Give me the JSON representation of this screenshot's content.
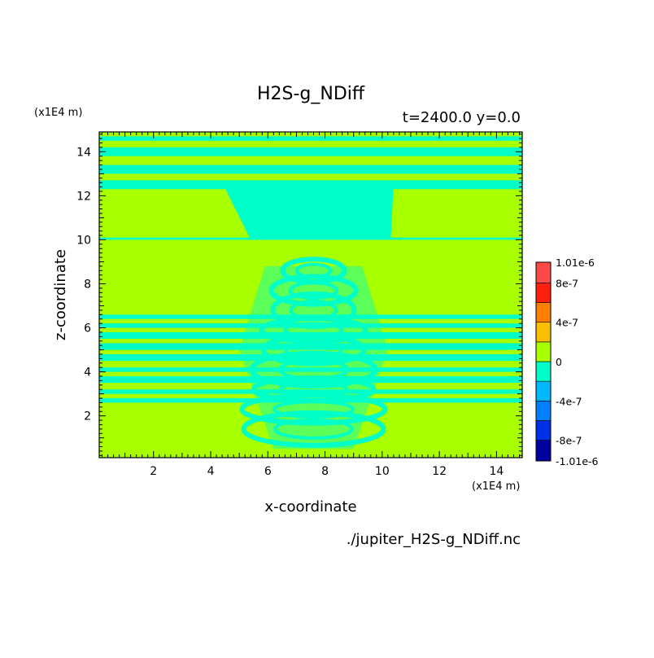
{
  "chart_data": {
    "type": "heatmap",
    "title": "H2S-g_NDiff",
    "subtitle": "t=2400.0 y=0.0",
    "xlabel": "x-coordinate",
    "ylabel": "z-coordinate",
    "x_unit": "(x1E4 m)",
    "y_unit": "(x1E4 m)",
    "source_file": "./jupiter_H2S-g_NDiff.nc",
    "xlim": [
      0.1,
      14.9
    ],
    "ylim": [
      0.1,
      14.9
    ],
    "x_ticks": [
      "2",
      "4",
      "6",
      "8",
      "10",
      "12",
      "14"
    ],
    "y_ticks": [
      "2",
      "4",
      "6",
      "8",
      "10",
      "12",
      "14"
    ],
    "colorbar": {
      "labels": [
        "1.01e-6",
        "8e-7",
        "4e-7",
        "0",
        "-4e-7",
        "-8e-7",
        "-1.01e-6"
      ],
      "label_values": [
        1.01e-06,
        8e-07,
        4e-07,
        0,
        -4e-07,
        -8e-07,
        -1.01e-06
      ],
      "levels": [
        -1.01e-06,
        -8e-07,
        -6e-07,
        -4e-07,
        -2e-07,
        0,
        2e-07,
        4e-07,
        6e-07,
        8e-07,
        1.01e-06
      ],
      "colors": [
        "#0000a0",
        "#0030e8",
        "#0080ff",
        "#00b8ff",
        "#00ffc8",
        "#a8ff00",
        "#f8c000",
        "#ff8000",
        "#ff2010",
        "#ff4848"
      ]
    },
    "background_value_color": "#a8ff00",
    "band_value_color": "#00ffc8",
    "horizontal_bands_z": [
      [
        14.5,
        14.7
      ],
      [
        13.8,
        14.2
      ],
      [
        13.0,
        13.4
      ],
      [
        12.3,
        12.7
      ],
      [
        10.0,
        10.1
      ],
      [
        6.4,
        6.6
      ],
      [
        6.0,
        6.2
      ],
      [
        5.5,
        5.8
      ],
      [
        5.0,
        5.3
      ],
      [
        4.5,
        4.8
      ],
      [
        4.0,
        4.2
      ],
      [
        3.5,
        3.8
      ],
      [
        3.0,
        3.2
      ],
      [
        2.6,
        2.8
      ]
    ],
    "central_plume": {
      "top_z": 12.6,
      "top_x_range": [
        4.4,
        10.4
      ],
      "waist_z": 10.0,
      "waist_x_range": [
        5.4,
        10.3
      ],
      "bottom_z": 0.5,
      "bottom_x_range": [
        6.2,
        9.0
      ]
    }
  }
}
